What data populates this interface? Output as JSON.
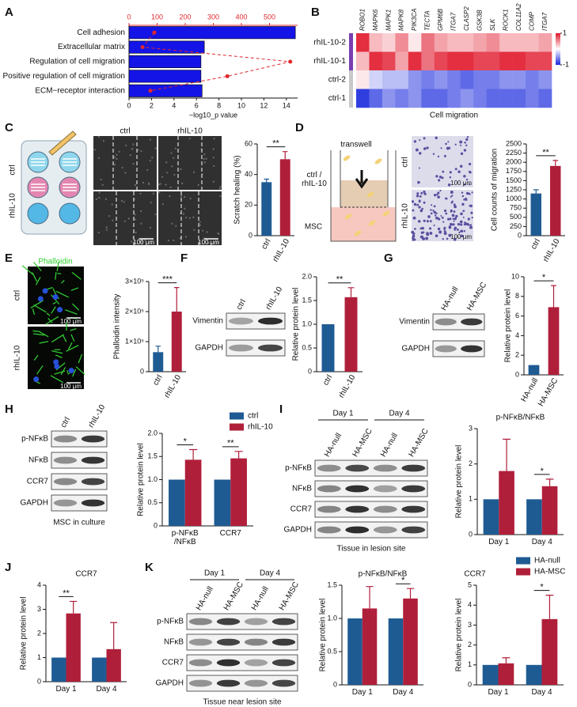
{
  "panel_labels": [
    "A",
    "B",
    "C",
    "D",
    "E",
    "F",
    "G",
    "H",
    "I",
    "J",
    "K"
  ],
  "panel_C": {
    "columns": [
      "ctrl",
      "rhIL-10"
    ],
    "rows": [
      "ctrl",
      "rhIL-10"
    ],
    "scale": "100 μm"
  },
  "panel_D": {
    "title": "transwell",
    "upper": "ctrl /\nrhIL-10",
    "lower": "MSC",
    "rows": [
      "ctrl",
      "rhIL-10"
    ],
    "scale": "100 μm"
  },
  "panel_E": {
    "stain": "Phalloidin",
    "rows": [
      "ctrl",
      "rhIL-10"
    ],
    "scale": "100 μm"
  },
  "blot_F": {
    "lanes": [
      "ctrl",
      "rhIL-10"
    ],
    "bands": [
      "Vimentin",
      "GAPDH"
    ]
  },
  "blot_G": {
    "lanes": [
      "HA-null",
      "HA-MSC"
    ],
    "bands": [
      "Vimentin",
      "GAPDH"
    ]
  },
  "blot_H": {
    "lanes": [
      "ctrl",
      "rhIL-10"
    ],
    "bands": [
      "p-NFκB",
      "NFκB",
      "CCR7",
      "GAPDH"
    ],
    "caption": "MSC in culture"
  },
  "blot_I": {
    "groups": [
      "Day 1",
      "Day 4"
    ],
    "lanes": [
      "HA-null",
      "HA-MSC",
      "HA-null",
      "HA-MSC"
    ],
    "bands": [
      "p-NFκB",
      "NFκB",
      "CCR7",
      "GAPDH"
    ],
    "caption": "Tissue in lesion site"
  },
  "blot_K": {
    "groups": [
      "Day 1",
      "Day 4"
    ],
    "lanes": [
      "HA-null",
      "HA-MSC",
      "HA-null",
      "HA-MSC"
    ],
    "bands": [
      "p-NFκB",
      "NFκB",
      "CCR7",
      "GAPDH"
    ],
    "caption": "Tissue near lesion site"
  },
  "chart_data": [
    {
      "type": "barh",
      "categories": [
        "Cell adhesion",
        "Extracellular matrix",
        "Regulation of cell migration",
        "Positive regulation of cell migration",
        "ECM−receptor interaction"
      ],
      "series": [
        {
          "color": "#1414e6",
          "values": [
            14.8,
            6.7,
            6.4,
            6.4,
            6.5
          ]
        },
        {
          "color": "#e0282d",
          "axis": "x2",
          "values": [
            90,
            48,
            574,
            350,
            76
          ]
        }
      ],
      "xlabel": "−log10_p value",
      "xlim": [
        0,
        15
      ],
      "xticks": [
        0,
        2,
        4,
        6,
        8,
        10,
        12,
        14
      ],
      "x2lim": [
        0,
        600
      ],
      "x2ticks": [
        0,
        100,
        200,
        300,
        400,
        500
      ]
    },
    {
      "type": "heatmap",
      "columns": [
        "ROBO1",
        "MAPK6",
        "MAPK1",
        "MAPK8",
        "PIK3CA",
        "TECTA",
        "GPM6B",
        "ITGA7",
        "CLASP2",
        "GSK3B",
        "SLK",
        "ROCK1",
        "COL11A2",
        "COMP",
        "ITGA7"
      ],
      "rows": [
        "rhIL-10-2",
        "rhIL-10-1",
        "ctrl-2",
        "ctrl-1"
      ],
      "values": [
        [
          0.9,
          0.3,
          0.2,
          0.5,
          0.1,
          0.6,
          0.4,
          0.3,
          0.3,
          0.4,
          0.5,
          0.3,
          0.3,
          0.3,
          0.4
        ],
        [
          0.3,
          0.9,
          0.8,
          0.4,
          0.9,
          0.6,
          0.8,
          0.9,
          0.9,
          0.8,
          0.8,
          0.9,
          0.9,
          0.8,
          0.8
        ],
        [
          0.1,
          -0.2,
          -0.3,
          -0.3,
          -0.5,
          -0.6,
          -0.5,
          -0.6,
          -0.7,
          -0.6,
          -0.6,
          -0.5,
          -0.5,
          -0.6,
          -0.5
        ],
        [
          -0.9,
          -0.7,
          -0.5,
          -0.6,
          -0.5,
          -0.7,
          -0.7,
          -0.6,
          -0.5,
          -0.6,
          -0.7,
          -0.7,
          -0.7,
          -0.6,
          -0.7
        ]
      ],
      "clim": [
        -1,
        1
      ],
      "cticks": [
        -1,
        1
      ],
      "xlabel": "Cell migration"
    },
    {
      "type": "bar",
      "ylabel": "Scratch healing (%)",
      "categories": [
        "ctrl",
        "rhIL-10"
      ],
      "values": [
        35,
        50
      ],
      "errors": [
        2,
        5
      ],
      "colors": [
        "#1f5b93",
        "#b01f3a"
      ],
      "ylim": [
        0,
        60
      ],
      "yticks": [
        0,
        20,
        40,
        60
      ],
      "annotations": [
        "**"
      ]
    },
    {
      "type": "bar",
      "ylabel": "Cell counts of migration",
      "categories": [
        "ctrl",
        "rhIL-10"
      ],
      "values": [
        1150,
        1900
      ],
      "errors": [
        100,
        150
      ],
      "colors": [
        "#1f5b93",
        "#b01f3a"
      ],
      "ylim": [
        0,
        2500
      ],
      "yticks": [
        0,
        250,
        500,
        750,
        1000,
        1250,
        1500,
        1750,
        2000,
        2250,
        2500
      ],
      "annotations": [
        "**"
      ]
    },
    {
      "type": "bar",
      "ylabel": "Phalloidin intensity",
      "categories": [
        "ctrl",
        "rhIL-10"
      ],
      "values": [
        65000,
        200000
      ],
      "errors": [
        20000,
        80000
      ],
      "colors": [
        "#1f5b93",
        "#b01f3a"
      ],
      "ylim": [
        0,
        300000
      ],
      "yticks": [
        0,
        {
          "value": 100000,
          "label": "1×10⁵"
        },
        {
          "value": 200000,
          "label": "2×10⁵"
        },
        {
          "value": 300000,
          "label": "3×10⁵"
        }
      ],
      "annotations": [
        "***"
      ]
    },
    {
      "type": "bar",
      "ylabel": "Relative protein level",
      "categories": [
        "ctrl",
        "rhIL-10"
      ],
      "values": [
        1,
        1.57
      ],
      "errors": [
        null,
        0.2
      ],
      "colors": [
        "#1f5b93",
        "#b01f3a"
      ],
      "ylim": [
        0,
        2
      ],
      "yticks": [
        0,
        0.5,
        {
          "value": 1,
          "label": "1.0"
        },
        1.5,
        {
          "value": 2,
          "label": "2.0"
        }
      ],
      "annotations": [
        "**"
      ]
    },
    {
      "type": "bar",
      "ylabel": "Relative protein level",
      "categories": [
        "HA-null",
        "HA-MSC"
      ],
      "values": [
        1,
        6.9
      ],
      "errors": [
        null,
        2.2
      ],
      "colors": [
        "#1f5b93",
        "#b01f3a"
      ],
      "ylim": [
        0,
        10
      ],
      "yticks": [
        0,
        2,
        4,
        6,
        8,
        10
      ],
      "annotations": [
        "*"
      ]
    },
    {
      "type": "bar",
      "ylabel": "Relative protein level",
      "categories": [
        "p-NFκB\n/NFκB",
        "CCR7"
      ],
      "series": [
        {
          "name": "ctrl",
          "color": "#1f5b93",
          "values": [
            1,
            1
          ]
        },
        {
          "name": "rhIL-10",
          "color": "#b01f3a",
          "values": [
            1.43,
            1.46
          ],
          "errors": [
            0.22,
            0.15
          ]
        }
      ],
      "ylim": [
        0,
        2
      ],
      "yticks": [
        0,
        0.5,
        {
          "value": 1,
          "label": "1.0"
        },
        1.5,
        {
          "value": 2,
          "label": "2.0"
        }
      ],
      "legend": "top-right",
      "annotations": [
        "*",
        "**"
      ]
    },
    {
      "type": "bar",
      "title": "p-NFκB/NFκB",
      "ylabel": "Relative protein level",
      "categories": [
        "Day 1",
        "Day 4"
      ],
      "series": [
        {
          "color": "#1f5b93",
          "values": [
            1,
            1
          ]
        },
        {
          "color": "#b01f3a",
          "values": [
            1.8,
            1.37
          ],
          "errors": [
            0.9,
            0.2
          ]
        }
      ],
      "ylim": [
        0,
        3
      ],
      "yticks": [
        0,
        1,
        2,
        3
      ],
      "annotations": [
        null,
        "*"
      ]
    },
    {
      "type": "bar",
      "title": "CCR7",
      "ylabel": "Relative protein level",
      "categories": [
        "Day 1",
        "Day 4"
      ],
      "series": [
        {
          "color": "#1f5b93",
          "values": [
            1,
            1
          ]
        },
        {
          "color": "#b01f3a",
          "values": [
            2.83,
            1.35
          ],
          "errors": [
            0.5,
            1.1
          ]
        }
      ],
      "ylim": [
        0,
        4
      ],
      "yticks": [
        0,
        1,
        2,
        3,
        4
      ],
      "annotations": [
        "**",
        null
      ]
    },
    {
      "type": "bar",
      "title": "p-NFκB/NFκB",
      "ylabel": "Relative protein level",
      "categories": [
        "Day 1",
        "Day 4"
      ],
      "series": [
        {
          "color": "#1f5b93",
          "values": [
            1,
            1
          ]
        },
        {
          "color": "#b01f3a",
          "values": [
            1.15,
            1.3
          ],
          "errors": [
            0.33,
            0.15
          ]
        }
      ],
      "ylim": [
        0,
        1.5
      ],
      "yticks": [
        0,
        0.5,
        {
          "value": 1,
          "label": "1.0"
        },
        1.5
      ],
      "annotations": [
        null,
        "*"
      ]
    },
    {
      "type": "bar",
      "title": "CCR7",
      "ylabel": "Relative protein level",
      "categories": [
        "Day 1",
        "Day 4"
      ],
      "series": [
        {
          "name": "HA-null",
          "color": "#1f5b93",
          "values": [
            1,
            1
          ]
        },
        {
          "name": "HA-MSC",
          "color": "#b01f3a",
          "values": [
            1.08,
            3.3
          ],
          "errors": [
            0.28,
            1.2
          ]
        }
      ],
      "ylim": [
        0,
        5
      ],
      "yticks": [
        0,
        1,
        2,
        3,
        4,
        5
      ],
      "legend": "top-right",
      "annotations": [
        null,
        "*"
      ]
    }
  ]
}
